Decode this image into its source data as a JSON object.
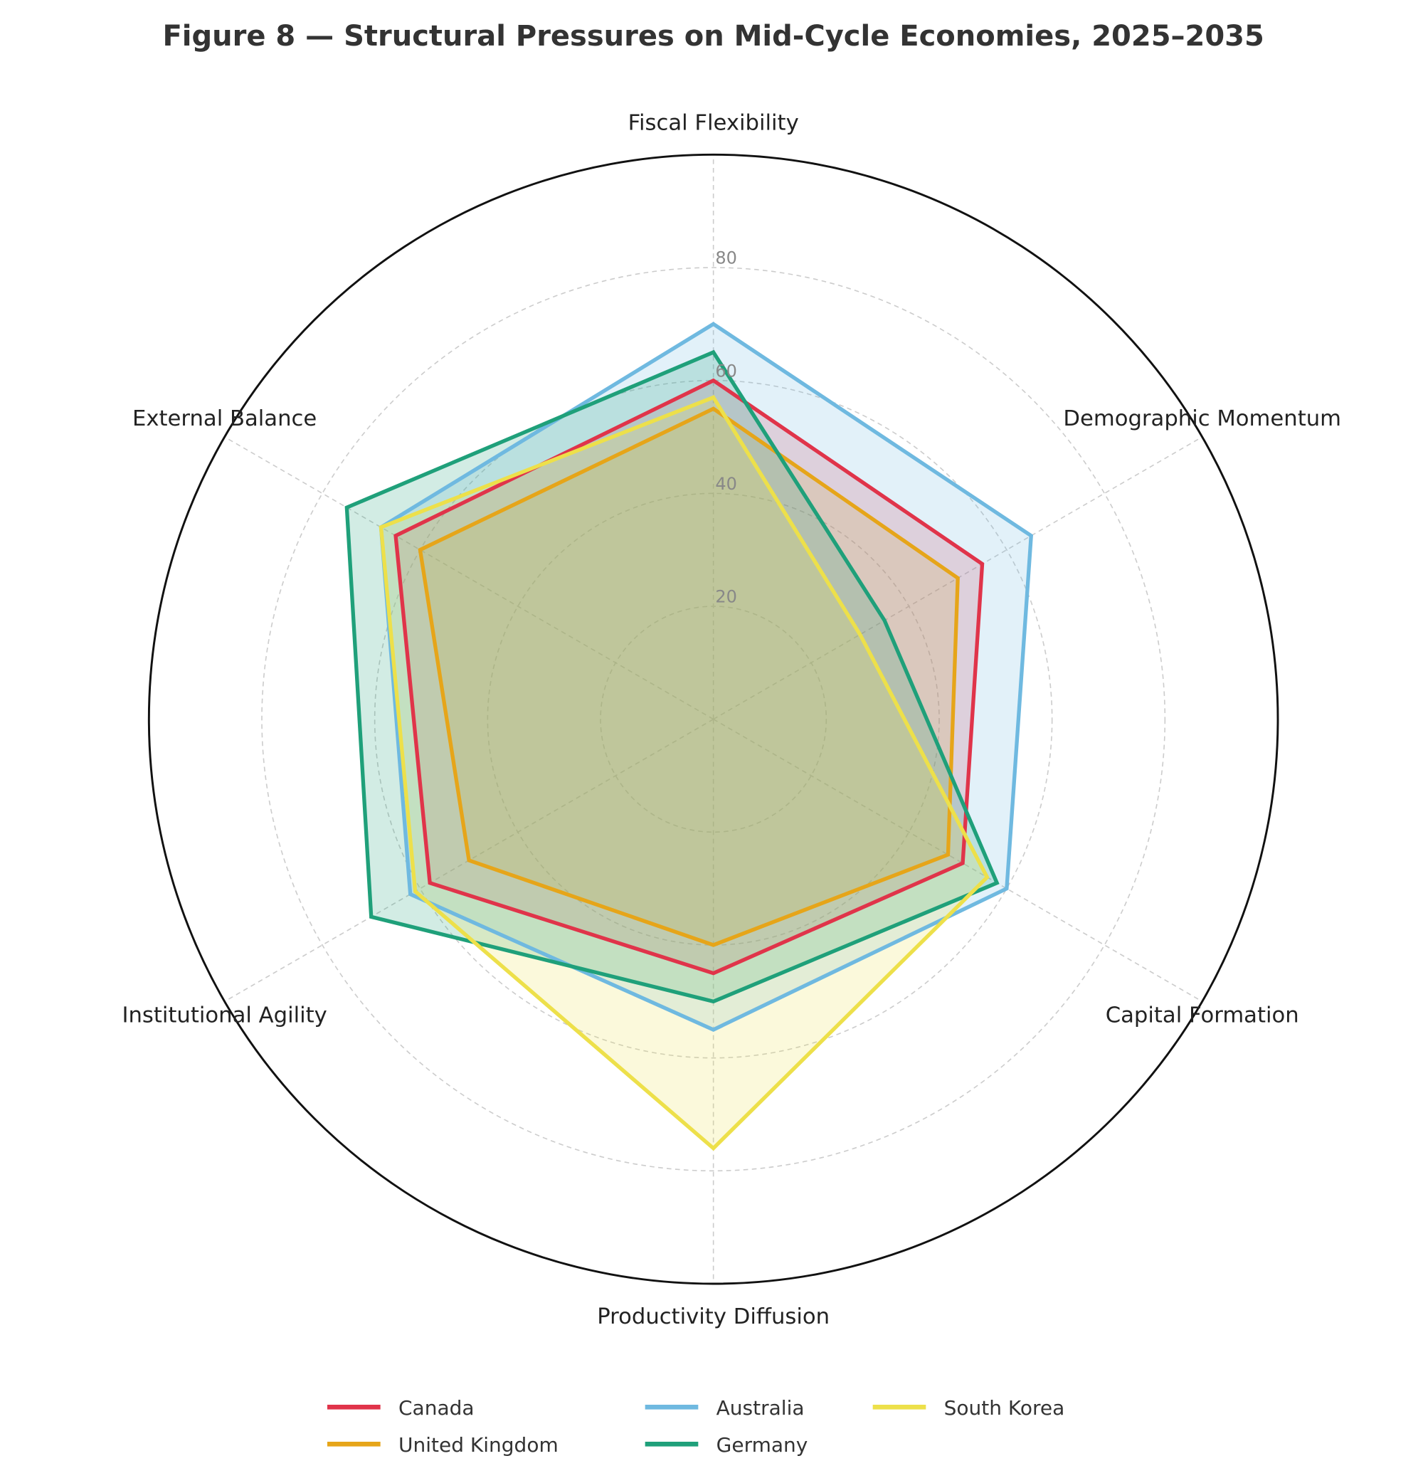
{
  "chart_data": {
    "type": "radar",
    "title": "Figure 8 — Structural Pressures on Mid-Cycle Economies, 2025–2035",
    "categories": [
      "Fiscal Flexibility",
      "Demographic Momentum",
      "Capital Formation",
      "Productivity Diffusion",
      "Institutional Agility",
      "External Balance"
    ],
    "rlim": [
      0,
      100
    ],
    "rticks": [
      20,
      40,
      60,
      80
    ],
    "rtick_labels": [
      "20",
      "40",
      "60",
      "80"
    ],
    "grid": true,
    "legend_position": "bottom",
    "series": [
      {
        "name": "Canada",
        "color": "#e0344a",
        "values": [
          60,
          55,
          51,
          45,
          58,
          65
        ]
      },
      {
        "name": "United Kingdom",
        "color": "#e6a519",
        "values": [
          55,
          50,
          48,
          40,
          50,
          60
        ]
      },
      {
        "name": "Australia",
        "color": "#6fb9e0",
        "values": [
          70,
          65,
          60,
          55,
          62,
          68
        ]
      },
      {
        "name": "Germany",
        "color": "#1fa07a",
        "values": [
          65,
          35,
          58,
          50,
          70,
          75
        ]
      },
      {
        "name": "South Korea",
        "color": "#ede04a",
        "values": [
          57,
          30,
          56,
          76,
          61,
          68
        ]
      }
    ]
  }
}
